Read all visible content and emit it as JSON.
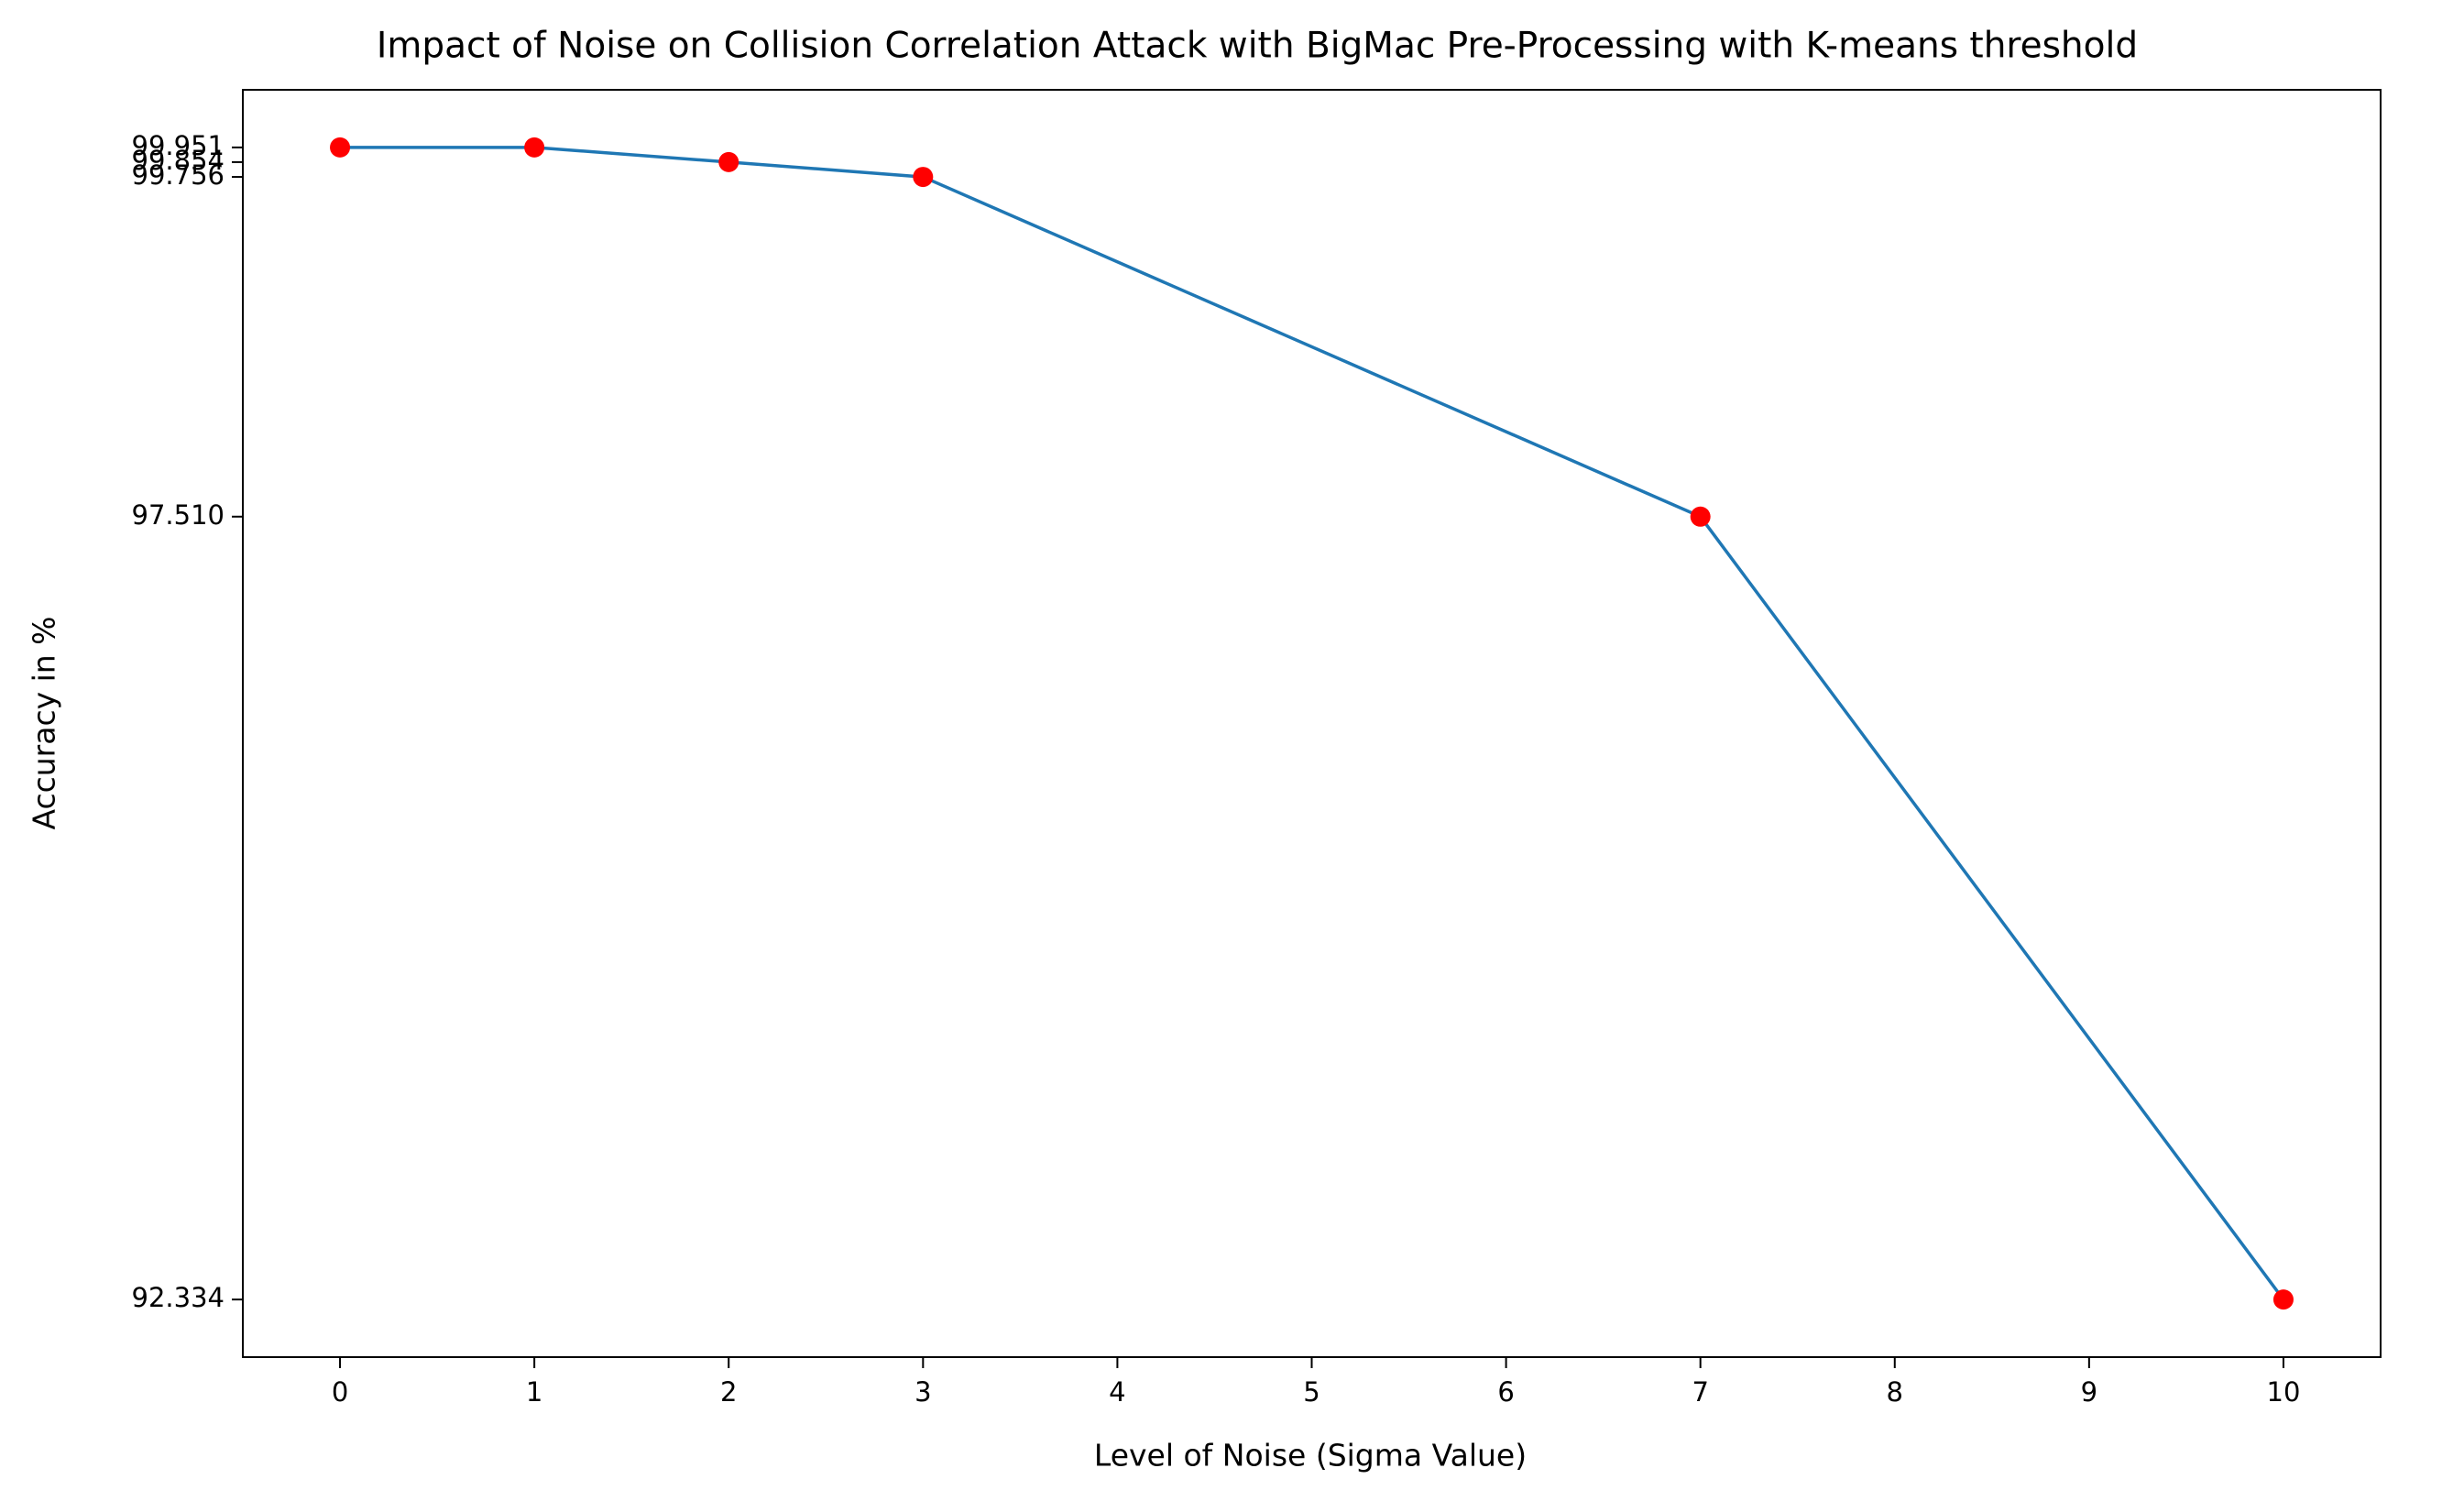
{
  "chart_data": {
    "type": "line",
    "title": "Impact of Noise on Collision Correlation Attack with BigMac Pre-Processing with K-means threshold",
    "x_label": "Level of Noise (Sigma Value)",
    "y_label": "Accuracy in %",
    "x": [
      0,
      1,
      2,
      3,
      7,
      10
    ],
    "series": [
      {
        "color": "#1f77b4",
        "marker_color": "#ff0000",
        "values": [
          99.951,
          99.951,
          99.854,
          99.756,
          97.51,
          92.334
        ]
      }
    ],
    "xlim": [
      -0.5,
      10.5
    ],
    "xticks": [
      0,
      1,
      2,
      3,
      4,
      5,
      6,
      7,
      8,
      9,
      10
    ],
    "ylim": [
      91.953,
      100.332
    ],
    "yticks": [
      92.334,
      {
        "value": 97.51,
        "label": "97.510"
      },
      99.756,
      99.854,
      99.951
    ],
    "grid": false
  }
}
